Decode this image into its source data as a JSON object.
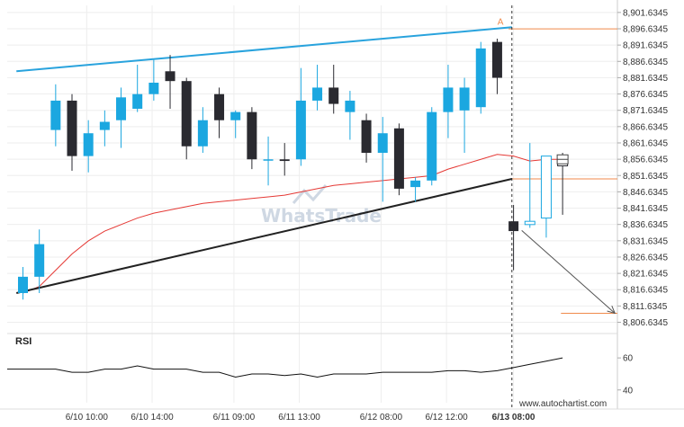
{
  "chart_data": {
    "type": "candlestick",
    "y_ticks": [
      "8,901.6345",
      "8,896.6345",
      "8,891.6345",
      "8,886.6345",
      "8,881.6345",
      "8,876.6345",
      "8,871.6345",
      "8,866.6345",
      "8,861.6345",
      "8,856.6345",
      "8,851.6345",
      "8,846.6345",
      "8,841.6345",
      "8,836.6345",
      "8,831.6345",
      "8,826.6345",
      "8,821.6345",
      "8,816.6345",
      "8,811.6345",
      "8,806.6345"
    ],
    "y_tick_values": [
      8901.6345,
      8896.6345,
      8891.6345,
      8886.6345,
      8881.6345,
      8876.6345,
      8871.6345,
      8866.6345,
      8861.6345,
      8856.6345,
      8851.6345,
      8846.6345,
      8841.6345,
      8836.6345,
      8831.6345,
      8826.6345,
      8821.6345,
      8816.6345,
      8811.6345,
      8806.6345
    ],
    "ylim": [
      8804.3,
      8903.8
    ],
    "x_labels": [
      "6/10 10:00",
      "6/10 14:00",
      "6/11 09:00",
      "6/11 13:00",
      "6/12 08:00",
      "6/12 12:00",
      "6/13 08:00"
    ],
    "x_label_index": [
      3.9,
      7.9,
      12.9,
      16.9,
      21.9,
      25.9,
      30.0
    ],
    "candles": [
      {
        "o": 8815.6,
        "h": 8823.6,
        "l": 8813.6,
        "c": 8820.6
      },
      {
        "o": 8820.6,
        "h": 8835.1,
        "l": 8815.6,
        "c": 8830.6
      },
      {
        "o": 8865.6,
        "h": 8879.6,
        "l": 8860.6,
        "c": 8874.6
      },
      {
        "o": 8874.6,
        "h": 8876.6,
        "l": 8853.1,
        "c": 8857.6
      },
      {
        "o": 8857.6,
        "h": 8868.6,
        "l": 8852.6,
        "c": 8864.6
      },
      {
        "o": 8865.6,
        "h": 8871.6,
        "l": 8860.6,
        "c": 8868.1
      },
      {
        "o": 8868.6,
        "h": 8878.6,
        "l": 8860.1,
        "c": 8875.6
      },
      {
        "o": 8872.1,
        "h": 8885.6,
        "l": 8871.1,
        "c": 8876.6
      },
      {
        "o": 8876.6,
        "h": 8887.1,
        "l": 8874.6,
        "c": 8880.1
      },
      {
        "o": 8883.6,
        "h": 8888.6,
        "l": 8872.1,
        "c": 8880.6
      },
      {
        "o": 8880.6,
        "h": 8881.6,
        "l": 8856.6,
        "c": 8860.6
      },
      {
        "o": 8860.6,
        "h": 8872.6,
        "l": 8858.6,
        "c": 8868.6
      },
      {
        "o": 8876.6,
        "h": 8878.6,
        "l": 8863.1,
        "c": 8868.6
      },
      {
        "o": 8868.6,
        "h": 8871.6,
        "l": 8863.1,
        "c": 8871.1
      },
      {
        "o": 8871.1,
        "h": 8872.6,
        "l": 8853.6,
        "c": 8856.6
      },
      {
        "o": 8856.6,
        "h": 8863.6,
        "l": 8848.6,
        "c": 8856.6
      },
      {
        "o": 8856.6,
        "h": 8861.6,
        "l": 8851.6,
        "c": 8856.1
      },
      {
        "o": 8856.6,
        "h": 8884.6,
        "l": 8854.6,
        "c": 8874.6
      },
      {
        "o": 8874.6,
        "h": 8885.6,
        "l": 8871.6,
        "c": 8878.6
      },
      {
        "o": 8878.6,
        "h": 8885.6,
        "l": 8870.6,
        "c": 8873.6
      },
      {
        "o": 8871.1,
        "h": 8877.6,
        "l": 8862.6,
        "c": 8874.6
      },
      {
        "o": 8868.6,
        "h": 8870.6,
        "l": 8855.6,
        "c": 8858.6
      },
      {
        "o": 8858.6,
        "h": 8869.6,
        "l": 8843.6,
        "c": 8864.6
      },
      {
        "o": 8866.1,
        "h": 8867.6,
        "l": 8845.6,
        "c": 8847.6
      },
      {
        "o": 8848.1,
        "h": 8851.1,
        "l": 8843.6,
        "c": 8850.1
      },
      {
        "o": 8850.1,
        "h": 8872.6,
        "l": 8848.6,
        "c": 8871.1
      },
      {
        "o": 8871.1,
        "h": 8885.6,
        "l": 8863.1,
        "c": 8878.6
      },
      {
        "o": 8871.6,
        "h": 8881.6,
        "l": 8858.6,
        "c": 8878.6
      },
      {
        "o": 8872.6,
        "h": 8892.6,
        "l": 8870.6,
        "c": 8890.6
      },
      {
        "o": 8892.6,
        "h": 8893.6,
        "l": 8876.6,
        "c": 8881.6
      },
      {
        "o": 8837.6,
        "h": 8842.6,
        "l": 8822.6,
        "c": 8834.6
      },
      {
        "o": 8836.6,
        "h": 8861.6,
        "l": 8835.6,
        "c": 8837.6
      },
      {
        "o": 8838.6,
        "h": 8857.6,
        "l": 8832.6,
        "c": 8857.6
      },
      {
        "o": 8856.6,
        "h": 8858.6,
        "l": 8839.6,
        "c": 8854.6
      }
    ],
    "candle_colors": {
      "up": "#1ba7e0",
      "down": "#2a2a30"
    },
    "moving_average": [
      8815.6,
      8817.6,
      8822.6,
      8827.6,
      8831.6,
      8834.6,
      8836.6,
      8838.6,
      8840.1,
      8841.1,
      8842.1,
      8843.1,
      8843.6,
      8844.1,
      8844.6,
      8845.1,
      8845.6,
      8846.6,
      8847.6,
      8848.6,
      8849.1,
      8849.6,
      8850.1,
      8850.6,
      8851.1,
      8851.6,
      8853.6,
      8855.1,
      8856.6,
      8858.1,
      8857.6,
      8856.1,
      8856.6,
      8856.6
    ],
    "moving_average_color": "#e53935",
    "resistance_line": {
      "from": [
        -0.4,
        8883.6
      ],
      "to": [
        29.9,
        8897.1
      ],
      "color": "#29a3dd"
    },
    "support_line": {
      "from": [
        -0.4,
        8815.6
      ],
      "to": [
        29.9,
        8850.6
      ],
      "color": "#222222"
    },
    "level_lines": [
      {
        "value": 8896.6,
        "from_index": 29.7,
        "color": "#f08a4b"
      },
      {
        "value": 8850.6,
        "from_index": 29.9,
        "color": "#f08a4b"
      },
      {
        "value": 8809.4,
        "from_index": 32.9,
        "color": "#f08a4b"
      }
    ],
    "forecast_arrow": {
      "from": [
        30.5,
        8834.8
      ],
      "to": [
        36.2,
        8809.4
      ],
      "color": "#555555"
    },
    "event_index": 29.9,
    "pattern_marker": "A",
    "current_price": 8856.6,
    "rsi": {
      "label": "RSI",
      "ticks": [
        60,
        40
      ],
      "ylim": [
        32,
        73
      ],
      "values": [
        53,
        53,
        53,
        51,
        51,
        53,
        53,
        55,
        53,
        53,
        53,
        51,
        51,
        48,
        50,
        50,
        49,
        50,
        48,
        50,
        50,
        50,
        51,
        51,
        51,
        51,
        52,
        52,
        51,
        52,
        54,
        56,
        58,
        60
      ]
    },
    "watermark": "WhatsTrade",
    "source": "www.autochartist.com"
  }
}
